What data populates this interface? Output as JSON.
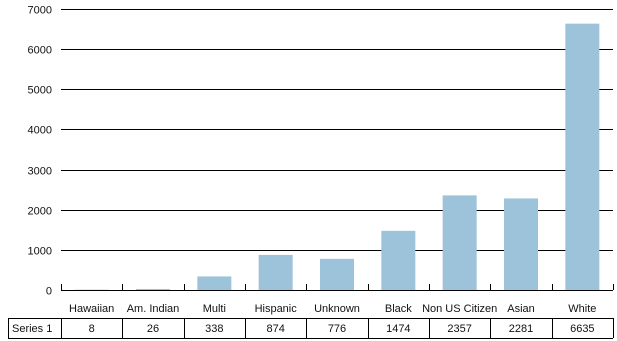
{
  "chart_data": {
    "type": "bar",
    "categories": [
      "Hawaiian",
      "Am. Indian",
      "Multi",
      "Hispanic",
      "Unknown",
      "Black",
      "Non US Citizen",
      "Asian",
      "White"
    ],
    "series": [
      {
        "name": "Series 1",
        "values": [
          8,
          26,
          338,
          874,
          776,
          1474,
          2357,
          2281,
          6635
        ]
      }
    ],
    "yticks": [
      0,
      1000,
      2000,
      3000,
      4000,
      5000,
      6000,
      7000
    ],
    "ylim": [
      0,
      7000
    ],
    "grid": true,
    "bar_color": "#9cc3da",
    "data_table": true
  }
}
